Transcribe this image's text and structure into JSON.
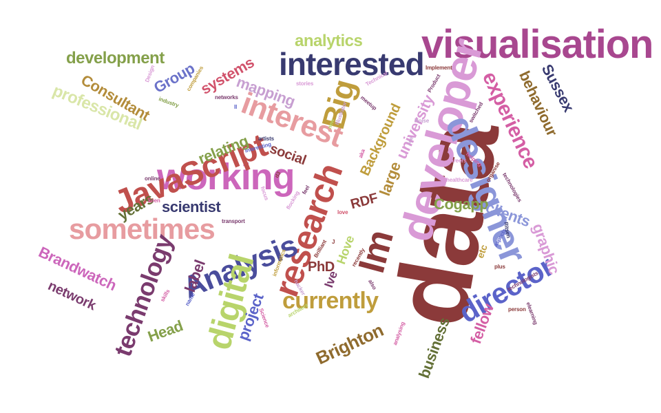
{
  "cloud": {
    "words": [
      {
        "text": "data",
        "color": "#8b3a3a"
      },
      {
        "text": "visualisation",
        "color": "#a8478f"
      },
      {
        "text": "developer",
        "color": "#d99ad6"
      },
      {
        "text": "designer",
        "color": "#8b96d9"
      },
      {
        "text": "interested",
        "color": "#383a70"
      },
      {
        "text": "working",
        "color": "#cc66bb"
      },
      {
        "text": "JavaScript",
        "color": "#c0504d"
      },
      {
        "text": "research",
        "color": "#c0504d"
      },
      {
        "text": "Analysis",
        "color": "#4a4d9c"
      },
      {
        "text": "sometimes",
        "color": "#e79ca0"
      },
      {
        "text": "interest",
        "color": "#e79ca0"
      },
      {
        "text": "Big",
        "color": "#bf9d3c"
      },
      {
        "text": "experience",
        "color": "#d45ea4"
      },
      {
        "text": "digital",
        "color": "#b8d46b"
      },
      {
        "text": "technology",
        "color": "#7a3b6e"
      },
      {
        "text": "director",
        "color": "#5b63c9"
      },
      {
        "text": "Im",
        "color": "#8b3a3a"
      },
      {
        "text": "currently",
        "color": "#bf9d3c"
      },
      {
        "text": "analytics",
        "color": "#b8d46b"
      },
      {
        "text": "development",
        "color": "#84a04a"
      },
      {
        "text": "professional",
        "color": "#d9e6a8"
      },
      {
        "text": "Consultant",
        "color": "#b38c3a"
      },
      {
        "text": "Group",
        "color": "#6b72c9"
      },
      {
        "text": "systems",
        "color": "#d1526b"
      },
      {
        "text": "mapping",
        "color": "#c79fd1"
      },
      {
        "text": "Brighton",
        "color": "#8f6b2e"
      },
      {
        "text": "Brandwatch",
        "color": "#cc66bb"
      },
      {
        "text": "network",
        "color": "#7a3b6e"
      },
      {
        "text": "scientist",
        "color": "#383a70"
      },
      {
        "text": "years",
        "color": "#637036"
      },
      {
        "text": "relating",
        "color": "#84a04a"
      },
      {
        "text": "social",
        "color": "#8b3a3a"
      },
      {
        "text": "large",
        "color": "#b38c3a"
      },
      {
        "text": "Background",
        "color": "#bf9d3c"
      },
      {
        "text": "university",
        "color": "#d99ad6"
      },
      {
        "text": "RDF",
        "color": "#8b3a3a"
      },
      {
        "text": "Cogapp",
        "color": "#84a04a"
      },
      {
        "text": "clients",
        "color": "#8b96d9"
      },
      {
        "text": "graphic",
        "color": "#d99ad6"
      },
      {
        "text": "behaviour",
        "color": "#8f6b2e"
      },
      {
        "text": "Sussex",
        "color": "#383a70"
      },
      {
        "text": "fellow",
        "color": "#d45ea4"
      },
      {
        "text": "business",
        "color": "#637036"
      },
      {
        "text": "Head",
        "color": "#84a04a"
      },
      {
        "text": "project",
        "color": "#5b63c9"
      },
      {
        "text": "label",
        "color": "#7a3b6e"
      },
      {
        "text": "PhD",
        "color": "#8b3a3a"
      },
      {
        "text": "Ive",
        "color": "#7a3b6e"
      },
      {
        "text": "Hove",
        "color": "#b8d46b"
      },
      {
        "text": "etc",
        "color": "#bf9d3c"
      },
      {
        "text": "Technical",
        "color": "#d99ad6"
      },
      {
        "text": "stories",
        "color": "#d99ad6"
      },
      {
        "text": "meetup",
        "color": "#7a3b6e"
      },
      {
        "text": "Implement",
        "color": "#8b3a3a"
      },
      {
        "text": "Product",
        "color": "#7a3b6e"
      },
      {
        "text": "Illustrator",
        "color": "#c79fd1"
      },
      {
        "text": "networks",
        "color": "#7a3b6e"
      },
      {
        "text": "industry",
        "color": "#84a04a"
      },
      {
        "text": "companies",
        "color": "#bf9d3c"
      },
      {
        "text": "Design",
        "color": "#d99ad6"
      },
      {
        "text": "Noise",
        "color": "#c79fd1"
      },
      {
        "text": "switched",
        "color": "#7a3b6e"
      },
      {
        "text": "careers",
        "color": "#d99ad6"
      },
      {
        "text": "helping",
        "color": "#d45ea4"
      },
      {
        "text": "organise",
        "color": "#8b3a3a"
      },
      {
        "text": "technologies",
        "color": "#7a3b6e"
      },
      {
        "text": "healthcare",
        "color": "#d99ad6"
      },
      {
        "text": "artists",
        "color": "#383a70"
      },
      {
        "text": "interesting",
        "color": "#5b63c9"
      },
      {
        "text": "online",
        "color": "#7a3b6e"
      },
      {
        "text": "keen",
        "color": "#d45ea4"
      },
      {
        "text": "d3",
        "color": "#8b3a3a"
      },
      {
        "text": "flocking",
        "color": "#d99ad6"
      },
      {
        "text": "love",
        "color": "#d1526b"
      },
      {
        "text": "transport",
        "color": "#7a3b6e"
      },
      {
        "text": "informatics",
        "color": "#bf9d3c"
      },
      {
        "text": "Brilliant",
        "color": "#8b3a3a"
      },
      {
        "text": "recently",
        "color": "#8b3a3a"
      },
      {
        "text": "also",
        "color": "#7a3b6e"
      },
      {
        "text": "hacker",
        "color": "#c79fd1"
      },
      {
        "text": "skills",
        "color": "#d45ea4"
      },
      {
        "text": "name",
        "color": "#5b63c9"
      },
      {
        "text": "Science",
        "color": "#d45ea4"
      },
      {
        "text": "architect",
        "color": "#b8d46b"
      },
      {
        "text": "analysing",
        "color": "#d45ea4"
      },
      {
        "text": "person",
        "color": "#8b3a3a"
      },
      {
        "text": "technologists",
        "color": "#7a3b6e"
      },
      {
        "text": "elearning",
        "color": "#7a3b6e"
      },
      {
        "text": "plus",
        "color": "#8b3a3a"
      },
      {
        "text": "aspects",
        "color": "#5b63c9"
      },
      {
        "text": "Ritsen",
        "color": "#383a70"
      },
      {
        "text": "aka",
        "color": "#d45ea4"
      },
      {
        "text": "new",
        "color": "#b8d46b"
      },
      {
        "text": "Joe",
        "color": "#c79fd1"
      },
      {
        "text": "feel",
        "color": "#7a3b6e"
      },
      {
        "text": "J",
        "color": "#8b3a3a"
      },
      {
        "text": "II",
        "color": "#5b63c9"
      },
      {
        "text": "focus",
        "color": "#d99ad6"
      }
    ]
  }
}
